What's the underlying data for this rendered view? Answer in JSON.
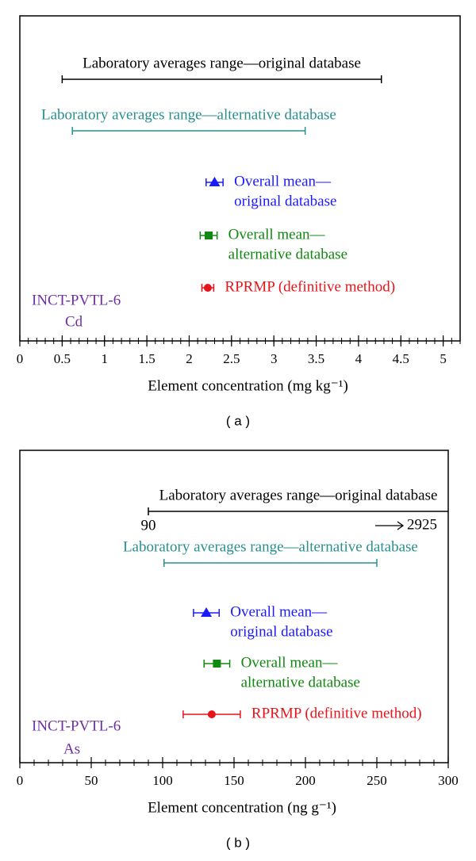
{
  "chart_data": [
    {
      "type": "interval",
      "caption": "( a )",
      "xlabel": "Element concentration (mg kg⁻¹)",
      "xlim": [
        0,
        5.2
      ],
      "xticks": [
        0,
        0.5,
        1,
        1.5,
        2,
        2.5,
        3,
        3.5,
        4,
        4.5,
        5
      ],
      "xminor": 0.1,
      "annotations": [
        "INCT-PVTL-6",
        "Cd"
      ],
      "annotation_color": "#7030a0",
      "series": [
        {
          "name": [
            "Laboratory averages range—original database"
          ],
          "kind": "range",
          "color": "#000000",
          "values": [
            0.5,
            4.27
          ]
        },
        {
          "name": [
            "Laboratory averages range—alternative database"
          ],
          "kind": "range",
          "color": "#2a8f8f",
          "values": [
            0.62,
            3.37
          ]
        },
        {
          "name": [
            "Overall mean—",
            "original database"
          ],
          "kind": "mean",
          "marker": "triangle",
          "color": "#1a1aff",
          "values": [
            2.3,
            0.1
          ]
        },
        {
          "name": [
            "Overall mean—",
            "alternative database"
          ],
          "kind": "mean",
          "marker": "square",
          "color": "#118811",
          "values": [
            2.23,
            0.1
          ]
        },
        {
          "name": [
            "RPRMP (definitive method)"
          ],
          "kind": "mean",
          "marker": "circle",
          "color": "#e8141a",
          "values": [
            2.22,
            0.07
          ]
        }
      ]
    },
    {
      "type": "interval",
      "caption": "( b )",
      "xlabel": "Element concentration (ng g⁻¹)",
      "xlim": [
        0,
        300
      ],
      "xticks": [
        0,
        50,
        100,
        150,
        200,
        250,
        300
      ],
      "xminor": 10,
      "annotations": [
        "INCT-PVTL-6",
        "As"
      ],
      "annotation_color": "#7030a0",
      "series": [
        {
          "name": [
            "Laboratory averages range—original database"
          ],
          "kind": "range",
          "color": "#000000",
          "values": [
            90,
            2925
          ],
          "show_limits": true
        },
        {
          "name": [
            "Laboratory averages range—alternative database"
          ],
          "kind": "range",
          "color": "#2a8f8f",
          "values": [
            101,
            250
          ]
        },
        {
          "name": [
            "Overall mean—",
            "original database"
          ],
          "kind": "mean",
          "marker": "triangle",
          "color": "#1a1aff",
          "values": [
            130.6,
            9
          ]
        },
        {
          "name": [
            "Overall mean—",
            "alternative database"
          ],
          "kind": "mean",
          "marker": "square",
          "color": "#118811",
          "values": [
            138,
            9
          ]
        },
        {
          "name": [
            "RPRMP (definitive method)"
          ],
          "kind": "mean",
          "marker": "circle",
          "color": "#e8141a",
          "values": [
            134.4,
            20
          ]
        }
      ]
    }
  ]
}
